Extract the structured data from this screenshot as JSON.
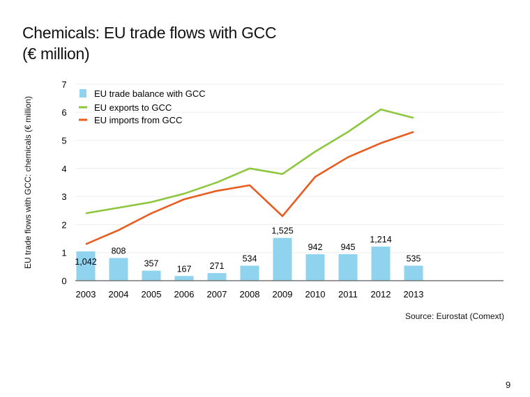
{
  "title_line1": "Chemicals: EU trade flows with GCC",
  "title_line2": "(€ million)",
  "source": "Source: Eurostat (Comext)",
  "page_number": "9",
  "chart_data": {
    "type": "bar+line",
    "ylabel": "EU trade flows with GCC: chemicals (€ million)",
    "ylim": [
      0,
      7
    ],
    "yticks": [
      "0",
      "1",
      "2",
      "3",
      "4",
      "5",
      "6",
      "7"
    ],
    "grid": true,
    "legend_position": "top-left",
    "categories": [
      "2003",
      "2004",
      "2005",
      "2006",
      "2007",
      "2008",
      "2009",
      "2010",
      "2011",
      "2012",
      "2013"
    ],
    "series": [
      {
        "name": "EU trade balance with GCC",
        "type": "bar",
        "color": "#8fd3ef",
        "values": [
          1042,
          808,
          357,
          167,
          271,
          534,
          1525,
          942,
          945,
          1214,
          535
        ],
        "labels": [
          "1,042",
          "808",
          "357",
          "167",
          "271",
          "534",
          "1,525",
          "942",
          "945",
          "1,214",
          "535"
        ]
      },
      {
        "name": "EU exports to GCC",
        "type": "line",
        "color": "#8dc63f",
        "values": [
          2.4,
          2.6,
          2.8,
          3.1,
          3.5,
          4.0,
          3.8,
          4.6,
          5.3,
          6.1,
          5.8
        ]
      },
      {
        "name": "EU imports from GCC",
        "type": "line",
        "color": "#ea5b1e",
        "values": [
          1.3,
          1.8,
          2.4,
          2.9,
          3.2,
          3.4,
          2.3,
          3.7,
          4.4,
          4.9,
          5.3
        ]
      }
    ]
  }
}
